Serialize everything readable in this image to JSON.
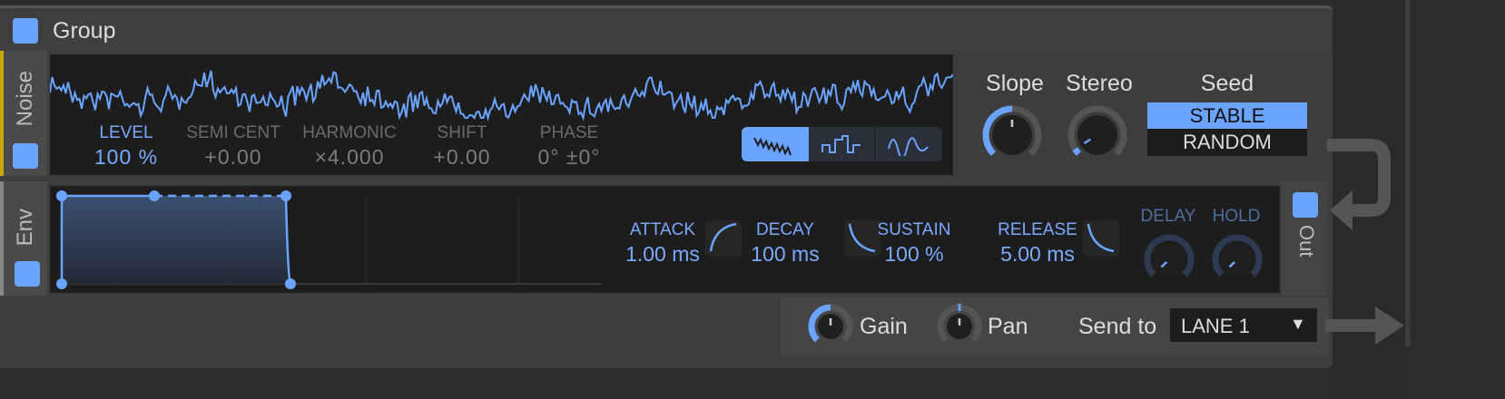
{
  "group": {
    "title": "Group",
    "enabled": true
  },
  "noise": {
    "tab": "Noise",
    "enabled": true,
    "params": [
      {
        "label": "LEVEL",
        "value": "100 %",
        "active": true
      },
      {
        "label": "SEMI CENT",
        "value": "+0.00",
        "active": false
      },
      {
        "label": "HARMONIC",
        "value": "×4.000",
        "active": false
      },
      {
        "label": "SHIFT",
        "value": "+0.00",
        "active": false
      },
      {
        "label": "PHASE",
        "value": "0° ±0°",
        "active": false
      }
    ],
    "waveforms": [
      {
        "icon": "noise-wave-icon",
        "selected": true
      },
      {
        "icon": "step-wave-icon",
        "selected": false
      },
      {
        "icon": "smooth-wave-icon",
        "selected": false
      }
    ],
    "slope": {
      "label": "Slope",
      "value": 0.5
    },
    "stereo": {
      "label": "Stereo",
      "value": 0.05
    },
    "seed": {
      "label": "Seed",
      "options": [
        "STABLE",
        "RANDOM"
      ],
      "selected": "STABLE"
    }
  },
  "env": {
    "tab": "Env",
    "enabled": true,
    "params": [
      {
        "label": "ATTACK",
        "value": "1.00 ms"
      },
      {
        "label": "DECAY",
        "value": "100 ms"
      },
      {
        "label": "SUSTAIN",
        "value": "100 %"
      },
      {
        "label": "RELEASE",
        "value": "5.00 ms"
      }
    ],
    "delay": {
      "label": "DELAY",
      "value": 0
    },
    "hold": {
      "label": "HOLD",
      "value": 0
    }
  },
  "out": {
    "label": "Out",
    "enabled": true,
    "gain": {
      "label": "Gain",
      "value": 0.5
    },
    "pan": {
      "label": "Pan",
      "value": 0.5
    },
    "send_to": {
      "label": "Send to",
      "value": "LANE 1"
    }
  },
  "colors": {
    "accent": "#6aa4ff",
    "noise_tab": "#c8a800"
  }
}
